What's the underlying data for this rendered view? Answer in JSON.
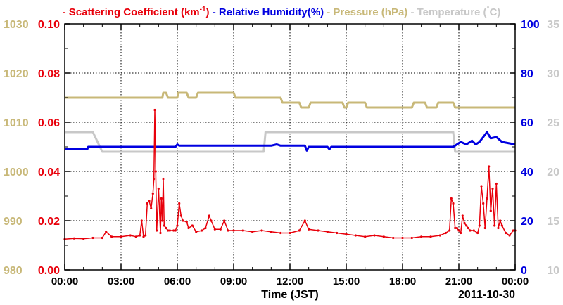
{
  "chart_data": {
    "type": "line",
    "legend": [
      {
        "text": "- Scattering Coefficient (km",
        "sup": "-1",
        "tail": ")",
        "color": "#e8000b"
      },
      {
        "text": "- Relative Humidity(%)",
        "sup": "",
        "tail": "",
        "color": "#0000e0"
      },
      {
        "text": "- Pressure (hPa)",
        "sup": "",
        "tail": "",
        "color": "#c8b878"
      },
      {
        "text": "- Temperature (",
        "sup": "°",
        "tail": "C)",
        "color": "#c8c8c8"
      }
    ],
    "xlabel": "Time (JST)",
    "date_label": "2011-10-30",
    "x_ticks": [
      "00:00",
      "03:00",
      "06:00",
      "09:00",
      "12:00",
      "15:00",
      "18:00",
      "21:00",
      "00:00"
    ],
    "xlim": [
      0,
      24
    ],
    "axes": {
      "pressure": {
        "ticks": [
          "980",
          "990",
          "1000",
          "1010",
          "1020",
          "1030"
        ],
        "lim": [
          980,
          1030
        ],
        "color": "#c8b878"
      },
      "scattering": {
        "ticks": [
          "0.00",
          "0.02",
          "0.04",
          "0.06",
          "0.08",
          "0.10"
        ],
        "lim": [
          0,
          0.1
        ],
        "color": "#e8000b"
      },
      "humidity": {
        "ticks": [
          "0",
          "20",
          "40",
          "60",
          "80",
          "100"
        ],
        "lim": [
          0,
          100
        ],
        "color": "#0000e0"
      },
      "temperature": {
        "ticks": [
          "10",
          "15",
          "20",
          "25",
          "30",
          "35"
        ],
        "lim": [
          10,
          35
        ],
        "color": "#c8c8c8"
      }
    },
    "grid": true,
    "series": [
      {
        "name": "Scattering Coefficient (km-1)",
        "axis": "scattering",
        "color": "#e8000b",
        "x": [
          0.0,
          0.5,
          1.0,
          1.5,
          2.0,
          2.2,
          2.5,
          3.0,
          3.5,
          3.8,
          4.0,
          4.1,
          4.2,
          4.3,
          4.4,
          4.5,
          4.6,
          4.7,
          4.75,
          4.8,
          4.85,
          4.9,
          5.0,
          5.1,
          5.15,
          5.2,
          5.25,
          5.3,
          5.4,
          5.5,
          5.6,
          5.8,
          5.9,
          6.0,
          6.1,
          6.2,
          6.3,
          6.5,
          6.6,
          6.8,
          7.0,
          7.3,
          7.5,
          7.7,
          7.8,
          8.0,
          8.3,
          8.5,
          8.7,
          9.0,
          9.5,
          10.0,
          10.5,
          11.0,
          11.5,
          12.0,
          12.5,
          12.8,
          13.0,
          13.5,
          14.0,
          14.5,
          15.0,
          15.5,
          16.0,
          16.5,
          17.0,
          17.5,
          18.0,
          18.5,
          19.0,
          19.5,
          20.0,
          20.3,
          20.5,
          20.6,
          20.7,
          20.8,
          20.9,
          21.0,
          21.1,
          21.2,
          21.3,
          21.4,
          21.5,
          21.6,
          21.8,
          22.0,
          22.1,
          22.2,
          22.3,
          22.4,
          22.5,
          22.6,
          22.7,
          22.8,
          22.9,
          23.0,
          23.1,
          23.2,
          23.3,
          23.5,
          23.7,
          23.9,
          24.0
        ],
        "y": [
          0.0125,
          0.0128,
          0.0127,
          0.013,
          0.013,
          0.0155,
          0.0135,
          0.0135,
          0.014,
          0.0135,
          0.014,
          0.02,
          0.0135,
          0.014,
          0.027,
          0.028,
          0.025,
          0.031,
          0.037,
          0.065,
          0.04,
          0.016,
          0.033,
          0.015,
          0.029,
          0.02,
          0.037,
          0.018,
          0.017,
          0.016,
          0.016,
          0.016,
          0.016,
          0.018,
          0.027,
          0.022,
          0.02,
          0.0195,
          0.017,
          0.018,
          0.0155,
          0.016,
          0.017,
          0.022,
          0.02,
          0.0165,
          0.0165,
          0.02,
          0.016,
          0.016,
          0.016,
          0.0155,
          0.016,
          0.0155,
          0.015,
          0.015,
          0.016,
          0.02,
          0.0165,
          0.016,
          0.0155,
          0.015,
          0.0145,
          0.014,
          0.0135,
          0.014,
          0.0135,
          0.013,
          0.013,
          0.013,
          0.0135,
          0.0135,
          0.014,
          0.015,
          0.016,
          0.029,
          0.027,
          0.017,
          0.017,
          0.016,
          0.015,
          0.022,
          0.019,
          0.018,
          0.017,
          0.016,
          0.016,
          0.015,
          0.018,
          0.034,
          0.027,
          0.017,
          0.029,
          0.042,
          0.024,
          0.033,
          0.018,
          0.035,
          0.017,
          0.02,
          0.018,
          0.015,
          0.014,
          0.016,
          0.016
        ]
      },
      {
        "name": "Relative Humidity(%)",
        "axis": "humidity",
        "color": "#0000e0",
        "x": [
          0,
          1.2,
          1.25,
          5.9,
          6.0,
          6.1,
          11.0,
          11.3,
          11.5,
          12.8,
          12.9,
          13.0,
          14.0,
          14.1,
          14.2,
          20.5,
          20.7,
          20.9,
          21.1,
          21.4,
          21.7,
          21.9,
          22.1,
          22.3,
          22.5,
          22.7,
          23.0,
          23.3,
          24.0
        ],
        "y": [
          49,
          49,
          50,
          50,
          51,
          50.5,
          50.5,
          51,
          50.5,
          50.5,
          48.5,
          50,
          50,
          49,
          50,
          50,
          50,
          51,
          52,
          51,
          52.5,
          51,
          52,
          54,
          56,
          53.5,
          54,
          52,
          51
        ]
      },
      {
        "name": "Pressure (hPa)",
        "axis": "pressure",
        "color": "#c8b878",
        "x": [
          0,
          5.2,
          5.25,
          5.4,
          5.5,
          6.0,
          6.05,
          6.5,
          6.6,
          7.0,
          7.1,
          9.0,
          9.1,
          11.5,
          11.6,
          12.5,
          12.6,
          13.0,
          13.1,
          14.8,
          14.9,
          15.0,
          15.1,
          16.0,
          16.1,
          18.5,
          18.6,
          19.2,
          19.3,
          19.8,
          19.9,
          20.7,
          20.8,
          24.0
        ],
        "y": [
          1015,
          1015,
          1016,
          1016,
          1015,
          1015,
          1016,
          1016,
          1015,
          1015,
          1016,
          1016,
          1015,
          1015,
          1014,
          1014,
          1013,
          1013,
          1014,
          1014,
          1013,
          1013,
          1014,
          1014,
          1013,
          1013,
          1014,
          1014,
          1013,
          1013,
          1014,
          1014,
          1013,
          1013
        ]
      },
      {
        "name": "Temperature (C)",
        "axis": "temperature",
        "color": "#c8c8c8",
        "x": [
          0,
          1.5,
          2.0,
          10.6,
          10.7,
          20.7,
          20.8,
          24.0
        ],
        "y": [
          24,
          24,
          22,
          22,
          24,
          24,
          22,
          22
        ]
      }
    ]
  }
}
